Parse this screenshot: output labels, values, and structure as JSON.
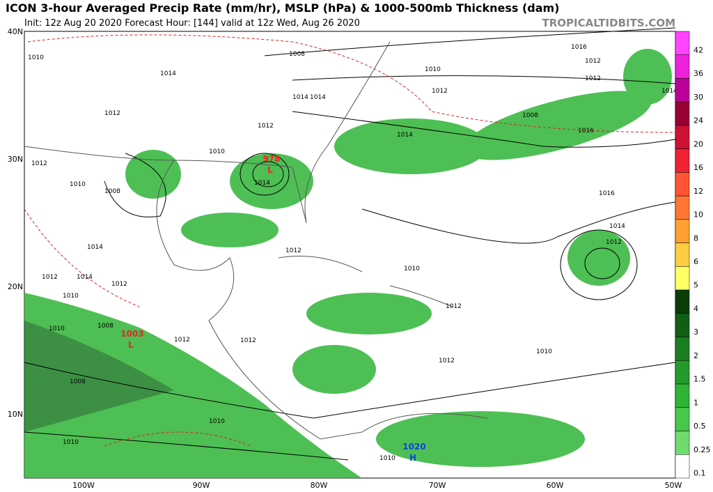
{
  "header": {
    "title": "ICON 3-hour Averaged Precip Rate (mm/hr), MSLP (hPa) & 1000-500mb Thickness (dam)",
    "subtitle": "Init: 12z Aug 20 2020   Forecast Hour: [144]   valid at 12z Wed, Aug 26 2020",
    "site": "TROPICALTIDBITS.COM"
  },
  "map": {
    "lat_labels": [
      "40N",
      "30N",
      "20N",
      "10N"
    ],
    "lon_labels": [
      "100W",
      "90W",
      "80W",
      "70W",
      "60W",
      "50W"
    ],
    "isobar_labels": [
      "1010",
      "1014",
      "1012",
      "1008",
      "1014",
      "1012",
      "1010",
      "1012",
      "1016",
      "1014",
      "1012",
      "1014",
      "1008",
      "1008",
      "1010",
      "1012",
      "1014",
      "1012",
      "1010",
      "1010",
      "1012",
      "1014",
      "1016",
      "1014",
      "1012",
      "1012",
      "1010",
      "1012",
      "1008",
      "1010",
      "1010",
      "1012",
      "1010",
      "1010",
      "1012",
      "1016",
      "1012",
      "1014",
      "1014",
      "1012",
      "1008",
      "1010"
    ],
    "storms": [
      {
        "pressure": "978",
        "symbol": "L"
      },
      {
        "pressure": "1003",
        "symbol": "L"
      },
      {
        "pressure": "1020",
        "symbol": "H"
      }
    ]
  },
  "colorbar": {
    "levels": [
      42,
      36,
      30,
      24,
      20,
      16,
      12,
      10,
      8,
      6,
      5,
      4,
      3,
      2,
      1.5,
      1,
      0.5,
      0.25,
      0.1
    ],
    "colors": [
      "#ff44ff",
      "#ee22dd",
      "#bb0099",
      "#990033",
      "#cc1133",
      "#ee2233",
      "#ff5533",
      "#ff7733",
      "#ffa033",
      "#ffcc44",
      "#ffff66",
      "#0b3d0b",
      "#0f5f16",
      "#1b7d22",
      "#259a2c",
      "#2fb436",
      "#46c84a",
      "#6fdb6f",
      "#ffffff"
    ]
  }
}
